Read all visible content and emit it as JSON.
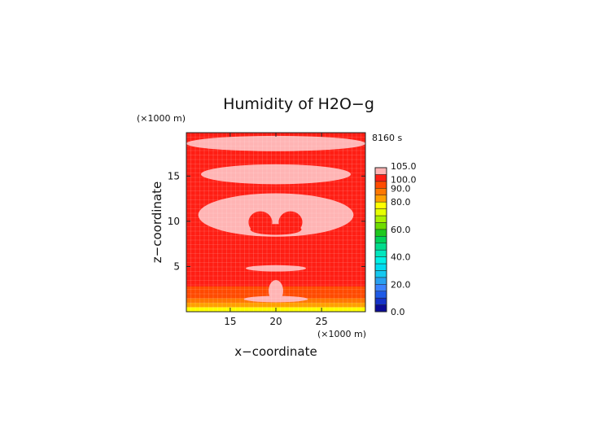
{
  "chart_data": {
    "type": "heatmap",
    "title": "Humidity of H2O−g",
    "time_label": "8160 s",
    "xlabel": "x−coordinate",
    "ylabel": "z−coordinate",
    "x_unit": "(×1000 m)",
    "y_unit": "(×1000 m)",
    "xlim": [
      10.2,
      29.8
    ],
    "ylim": [
      0,
      19.8
    ],
    "x_ticks": [
      {
        "value": 15,
        "label": "15"
      },
      {
        "value": 20,
        "label": "20"
      },
      {
        "value": 25,
        "label": "25"
      }
    ],
    "y_ticks": [
      {
        "value": 5,
        "label": "5"
      },
      {
        "value": 10,
        "label": "10"
      },
      {
        "value": 15,
        "label": "15"
      }
    ],
    "colorbar": {
      "range": [
        0,
        105
      ],
      "tick_labels": [
        {
          "value": 0,
          "label": "0.0"
        },
        {
          "value": 20,
          "label": "20.0"
        },
        {
          "value": 40,
          "label": "40.0"
        },
        {
          "value": 60,
          "label": "60.0"
        },
        {
          "value": 80,
          "label": "80.0"
        },
        {
          "value": 90,
          "label": "90.0"
        },
        {
          "value": 100,
          "label": "100.0"
        },
        {
          "value": 105,
          "label": "105.0"
        }
      ],
      "levels": [
        {
          "from": 0,
          "to": 5,
          "color": "#0a0a96"
        },
        {
          "from": 5,
          "to": 10,
          "color": "#1432c8"
        },
        {
          "from": 10,
          "to": 15,
          "color": "#1e5ae6"
        },
        {
          "from": 15,
          "to": 20,
          "color": "#3c82ff"
        },
        {
          "from": 20,
          "to": 25,
          "color": "#28a0f0"
        },
        {
          "from": 25,
          "to": 30,
          "color": "#14c8f0"
        },
        {
          "from": 30,
          "to": 35,
          "color": "#00dcf0"
        },
        {
          "from": 35,
          "to": 40,
          "color": "#00f0e6"
        },
        {
          "from": 40,
          "to": 45,
          "color": "#00e6be"
        },
        {
          "from": 45,
          "to": 50,
          "color": "#00dc8c"
        },
        {
          "from": 50,
          "to": 55,
          "color": "#00d25a"
        },
        {
          "from": 55,
          "to": 60,
          "color": "#1ec81e"
        },
        {
          "from": 60,
          "to": 65,
          "color": "#6edc00"
        },
        {
          "from": 65,
          "to": 70,
          "color": "#aaf000"
        },
        {
          "from": 70,
          "to": 75,
          "color": "#e6ff00"
        },
        {
          "from": 75,
          "to": 80,
          "color": "#ffff00"
        },
        {
          "from": 80,
          "to": 85,
          "color": "#ffa000"
        },
        {
          "from": 85,
          "to": 90,
          "color": "#ff7800"
        },
        {
          "from": 90,
          "to": 95,
          "color": "#ff4b00"
        },
        {
          "from": 95,
          "to": 100,
          "color": "#ff1e14"
        },
        {
          "from": 100,
          "to": 105,
          "color": "#ffb4b4"
        }
      ]
    },
    "background_level": 97,
    "bands": [
      {
        "z": [
          0,
          0.5
        ],
        "value": 78
      },
      {
        "z": [
          0.5,
          1.0
        ],
        "value": 83
      },
      {
        "z": [
          1.0,
          1.5
        ],
        "value": 87
      },
      {
        "z": [
          1.5,
          2.1
        ],
        "value": 91
      },
      {
        "z": [
          2.1,
          2.8
        ],
        "value": 94
      }
    ],
    "regions": [
      {
        "shape": "ellipse",
        "cx": 20,
        "cz": 18.6,
        "rx": 9.8,
        "rz": 0.85,
        "value": 102
      },
      {
        "shape": "ellipse",
        "cx": 20,
        "cz": 15.2,
        "rx": 8.2,
        "rz": 1.1,
        "value": 102
      },
      {
        "shape": "ellipse",
        "cx": 20,
        "cz": 10.7,
        "rx": 8.5,
        "rz": 2.4,
        "value": 102
      },
      {
        "shape": "ellipse",
        "cx": 18.3,
        "cz": 9.9,
        "rx": 1.3,
        "rz": 1.2,
        "value": 97
      },
      {
        "shape": "ellipse",
        "cx": 21.6,
        "cz": 9.9,
        "rx": 1.3,
        "rz": 1.2,
        "value": 97
      },
      {
        "shape": "ellipse",
        "cx": 20,
        "cz": 9.1,
        "rx": 2.8,
        "rz": 0.6,
        "value": 97
      },
      {
        "shape": "ellipse",
        "cx": 20,
        "cz": 4.8,
        "rx": 3.3,
        "rz": 0.35,
        "value": 102
      },
      {
        "shape": "ellipse",
        "cx": 20,
        "cz": 2.3,
        "rx": 0.8,
        "rz": 1.2,
        "value": 102
      },
      {
        "shape": "ellipse",
        "cx": 20,
        "cz": 1.4,
        "rx": 3.5,
        "rz": 0.35,
        "value": 102
      }
    ],
    "grid": "on"
  }
}
